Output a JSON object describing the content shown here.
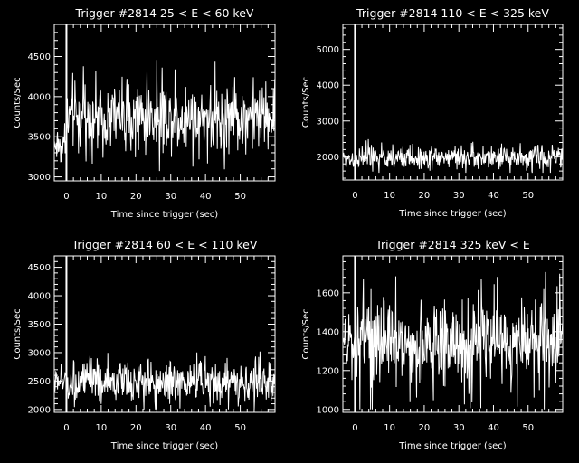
{
  "colors": {
    "background": "#000000",
    "foreground": "#ffffff"
  },
  "chart_data": [
    {
      "type": "line",
      "title": "Trigger #2814 25 < E < 60 keV",
      "xlabel": "Time since trigger (sec)",
      "ylabel": "Counts/Sec",
      "xlim": [
        -3.5,
        60
      ],
      "ylim": [
        2950,
        4900
      ],
      "xticks": [
        0,
        10,
        20,
        30,
        40,
        50
      ],
      "yticks": [
        3000,
        3500,
        4000,
        4500
      ],
      "trigger_time": 0,
      "series": [
        {
          "pre_level": 3400,
          "pre_noise": 120,
          "post_level": 3750,
          "post_noise": 210,
          "range": [
            3000,
            4500
          ]
        }
      ]
    },
    {
      "type": "line",
      "title": "Trigger #2814 110 < E < 325 keV",
      "xlabel": "Time since trigger (sec)",
      "ylabel": "Counts/Sec",
      "xlim": [
        -3.5,
        60
      ],
      "ylim": [
        1350,
        5700
      ],
      "xticks": [
        0,
        10,
        20,
        30,
        40,
        50
      ],
      "yticks": [
        2000,
        3000,
        4000,
        5000
      ],
      "trigger_time": 0,
      "series": [
        {
          "pre_level": 1950,
          "pre_noise": 130,
          "post_level": 1980,
          "post_noise": 160,
          "range": [
            1550,
            2500
          ]
        }
      ]
    },
    {
      "type": "line",
      "title": "Trigger #2814 60 < E < 110 keV",
      "xlabel": "Time since trigger (sec)",
      "ylabel": "Counts/Sec",
      "xlim": [
        -3.5,
        60
      ],
      "ylim": [
        1950,
        4700
      ],
      "xticks": [
        0,
        10,
        20,
        30,
        40,
        50
      ],
      "yticks": [
        2000,
        2500,
        3000,
        3500,
        4000,
        4500
      ],
      "trigger_time": 0,
      "series": [
        {
          "pre_level": 2500,
          "pre_noise": 150,
          "post_level": 2480,
          "post_noise": 170,
          "range": [
            2000,
            3100
          ]
        }
      ]
    },
    {
      "type": "line",
      "title": "Trigger #2814 325 keV < E",
      "xlabel": "Time since trigger (sec)",
      "ylabel": "Counts/Sec",
      "xlim": [
        -3.5,
        60
      ],
      "ylim": [
        985,
        1790
      ],
      "xticks": [
        0,
        10,
        20,
        30,
        40,
        50
      ],
      "yticks": [
        1000,
        1200,
        1400,
        1600
      ],
      "trigger_time": 0,
      "series": [
        {
          "pre_level": 1340,
          "pre_noise": 60,
          "post_level": 1340,
          "post_noise": 110,
          "range": [
            1000,
            1780
          ]
        }
      ]
    }
  ]
}
